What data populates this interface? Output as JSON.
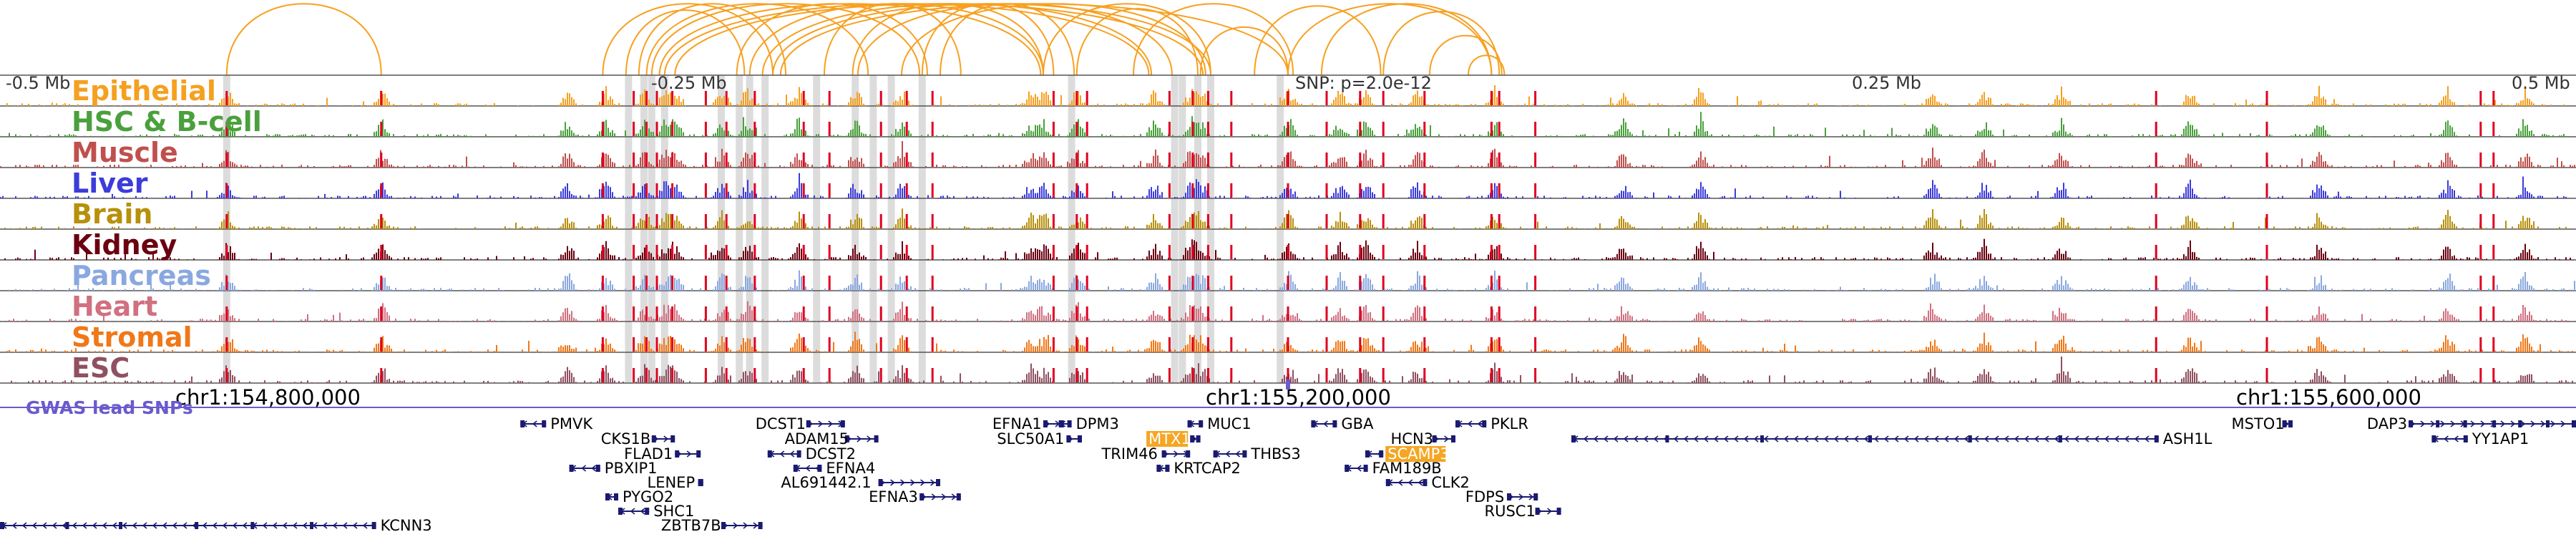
{
  "colors": {
    "epithelial": "#f5a020",
    "hsc_bcell": "#4aa03c",
    "muscle": "#c0504d",
    "liver": "#3c3cdc",
    "brain": "#b8900a",
    "kidney": "#6a0010",
    "pancreas": "#8aa8e0",
    "heart": "#d07080",
    "stromal": "#f07818",
    "esc": "#905060",
    "highlight_line": "#e00020",
    "shade": "#d0d0d0",
    "gene": "#1a1a70",
    "gwas": "#6a5acd",
    "loop": "#f7a020",
    "highlight_gene": "#f5a623"
  },
  "tracks": [
    {
      "key": "epithelial",
      "label": "Epithelial"
    },
    {
      "key": "hsc_bcell",
      "label": "HSC & B-cell"
    },
    {
      "key": "muscle",
      "label": "Muscle"
    },
    {
      "key": "liver",
      "label": "Liver"
    },
    {
      "key": "brain",
      "label": "Brain"
    },
    {
      "key": "kidney",
      "label": "Kidney"
    },
    {
      "key": "pancreas",
      "label": "Pancreas"
    },
    {
      "key": "heart",
      "label": "Heart"
    },
    {
      "key": "stromal",
      "label": "Stromal"
    },
    {
      "key": "esc",
      "label": "ESC"
    }
  ],
  "distance_axis": {
    "labels": [
      "-0.5 Mb",
      "-0.25 Mb",
      "0.25 Mb",
      "0.5 Mb"
    ],
    "snp_label": "SNP: p=2.0e-12"
  },
  "coordinate_axis": {
    "labels": [
      "chr1:154,800,000",
      "chr1:155,200,000",
      "chr1:155,600,000"
    ],
    "positions_bp": [
      154800000,
      155200000,
      155600000
    ]
  },
  "gwas_label": "GWAS lead SNPs",
  "region_bp": [
    154700000,
    155700000
  ],
  "genes": [
    {
      "name": "PMVK",
      "strand": "-",
      "start": 0.202,
      "end": 0.212,
      "label_side": "right",
      "row": 0
    },
    {
      "name": "CKS1B",
      "strand": "+",
      "start": 0.253,
      "end": 0.262,
      "label_side": "left",
      "row": 1
    },
    {
      "name": "FLAD1",
      "strand": "+",
      "start": 0.262,
      "end": 0.272,
      "label_side": "left",
      "row": 2
    },
    {
      "name": "PBXIP1",
      "strand": "-",
      "start": 0.221,
      "end": 0.233,
      "label_side": "right",
      "row": 3
    },
    {
      "name": "LENEP",
      "strand": "+",
      "start": 0.271,
      "end": 0.273,
      "label_side": "left",
      "row": 4
    },
    {
      "name": "PYGO2",
      "strand": "-",
      "start": 0.235,
      "end": 0.24,
      "label_side": "right",
      "row": 5
    },
    {
      "name": "SHC1",
      "strand": "-",
      "start": 0.24,
      "end": 0.252,
      "label_side": "right",
      "row": 6
    },
    {
      "name": "ZBTB7B",
      "strand": "+",
      "start": 0.28,
      "end": 0.296,
      "label_side": "left",
      "row": 7
    },
    {
      "name": "DCST1",
      "strand": "+",
      "start": 0.313,
      "end": 0.328,
      "label_side": "left",
      "row": 0
    },
    {
      "name": "ADAM15",
      "strand": "+",
      "start": 0.328,
      "end": 0.341,
      "label_side": "left",
      "row": 1
    },
    {
      "name": "DCST2",
      "strand": "-",
      "start": 0.298,
      "end": 0.311,
      "label_side": "right",
      "row": 2
    },
    {
      "name": "EFNA4",
      "strand": "-",
      "start": 0.308,
      "end": 0.319,
      "label_side": "right",
      "row": 3
    },
    {
      "name": "AL691442.1",
      "strand": "+",
      "start": 0.341,
      "end": 0.365,
      "label_side": "left",
      "row": 4
    },
    {
      "name": "EFNA3",
      "strand": "+",
      "start": 0.357,
      "end": 0.373,
      "label_side": "left",
      "row": 5
    },
    {
      "name": "EFNA1",
      "strand": "+",
      "start": 0.405,
      "end": 0.413,
      "label_side": "left",
      "row": 0
    },
    {
      "name": "SLC50A1",
      "strand": "+",
      "start": 0.414,
      "end": 0.42,
      "label_side": "left",
      "row": 1
    },
    {
      "name": "DPM3",
      "strand": "-",
      "start": 0.411,
      "end": 0.416,
      "label_side": "right",
      "row": 0
    },
    {
      "name": "MUC1",
      "strand": "-",
      "start": 0.461,
      "end": 0.467,
      "label_side": "right",
      "row": 0
    },
    {
      "name": "MTX1",
      "strand": "+",
      "start": 0.462,
      "end": 0.466,
      "label_side": "left",
      "row": 1,
      "highlight": true
    },
    {
      "name": "TRIM46",
      "strand": "+",
      "start": 0.451,
      "end": 0.462,
      "label_side": "left",
      "row": 2
    },
    {
      "name": "KRTCAP2",
      "strand": "-",
      "start": 0.449,
      "end": 0.454,
      "label_side": "right",
      "row": 3
    },
    {
      "name": "THBS3",
      "strand": "-",
      "start": 0.471,
      "end": 0.484,
      "label_side": "right",
      "row": 2
    },
    {
      "name": "GBA",
      "strand": "-",
      "start": 0.509,
      "end": 0.519,
      "label_side": "right",
      "row": 0
    },
    {
      "name": "HCN3",
      "strand": "+",
      "start": 0.556,
      "end": 0.565,
      "label_side": "left",
      "row": 1
    },
    {
      "name": "SCAMP3",
      "strand": "-",
      "start": 0.53,
      "end": 0.537,
      "label_side": "right",
      "row": 2,
      "highlight": true
    },
    {
      "name": "FAM189B",
      "strand": "-",
      "start": 0.522,
      "end": 0.531,
      "label_side": "right",
      "row": 3
    },
    {
      "name": "CLK2",
      "strand": "-",
      "start": 0.538,
      "end": 0.554,
      "label_side": "right",
      "row": 4
    },
    {
      "name": "PKLR",
      "strand": "-",
      "start": 0.565,
      "end": 0.577,
      "label_side": "right",
      "row": 0
    },
    {
      "name": "FDPS",
      "strand": "+",
      "start": 0.585,
      "end": 0.597,
      "label_side": "left",
      "row": 5
    },
    {
      "name": "RUSC1",
      "strand": "+",
      "start": 0.596,
      "end": 0.606,
      "label_side": "left",
      "row": 6
    },
    {
      "name": "ASH1L",
      "strand": "-",
      "start": 0.61,
      "end": 0.838,
      "label_side": "right",
      "row": 1
    },
    {
      "name": "MSTO1",
      "strand": "+",
      "start": 0.886,
      "end": 0.89,
      "label_side": "left",
      "row": 0
    },
    {
      "name": "DAP3",
      "strand": "+",
      "start": 0.935,
      "end": 1.0,
      "label_side": "left",
      "row": 0
    },
    {
      "name": "YY1AP1",
      "strand": "-",
      "start": 0.944,
      "end": 0.958,
      "label_side": "right",
      "row": 1
    },
    {
      "name": "KCNN3",
      "strand": "-",
      "start": 0.0,
      "end": 0.146,
      "label_side": "right",
      "row": 7
    }
  ],
  "highlight_positions": [
    0.088,
    0.148,
    0.234,
    0.246,
    0.251,
    0.255,
    0.261,
    0.274,
    0.282,
    0.293,
    0.312,
    0.322,
    0.342,
    0.352,
    0.362,
    0.409,
    0.418,
    0.422,
    0.454,
    0.463,
    0.469,
    0.478,
    0.5,
    0.515,
    0.528,
    0.537,
    0.553,
    0.579,
    0.582,
    0.596,
    0.837,
    0.88,
    0.963,
    0.968
  ],
  "shaded_positions": [
    0.088,
    0.244,
    0.25,
    0.253,
    0.258,
    0.28,
    0.287,
    0.291,
    0.297,
    0.317,
    0.332,
    0.339,
    0.346,
    0.358,
    0.416,
    0.456,
    0.459,
    0.465,
    0.47,
    0.497
  ],
  "gwas_snp_positions": [
    0.5
  ],
  "loops": [
    [
      0.088,
      0.148
    ],
    [
      0.243,
      0.289
    ],
    [
      0.248,
      0.305
    ],
    [
      0.251,
      0.337
    ],
    [
      0.253,
      0.357
    ],
    [
      0.256,
      0.404
    ],
    [
      0.258,
      0.446
    ],
    [
      0.262,
      0.467
    ],
    [
      0.286,
      0.36
    ],
    [
      0.291,
      0.405
    ],
    [
      0.296,
      0.447
    ],
    [
      0.3,
      0.47
    ],
    [
      0.303,
      0.5
    ],
    [
      0.32,
      0.373
    ],
    [
      0.331,
      0.405
    ],
    [
      0.333,
      0.455
    ],
    [
      0.35,
      0.468
    ],
    [
      0.358,
      0.409
    ],
    [
      0.365,
      0.417
    ],
    [
      0.405,
      0.47
    ],
    [
      0.418,
      0.465
    ],
    [
      0.466,
      0.5
    ],
    [
      0.487,
      0.536
    ],
    [
      0.5,
      0.579
    ],
    [
      0.513,
      0.579
    ],
    [
      0.537,
      0.582
    ],
    [
      0.555,
      0.583
    ],
    [
      0.57,
      0.584
    ],
    [
      0.234,
      0.3
    ],
    [
      0.44,
      0.502
    ]
  ]
}
